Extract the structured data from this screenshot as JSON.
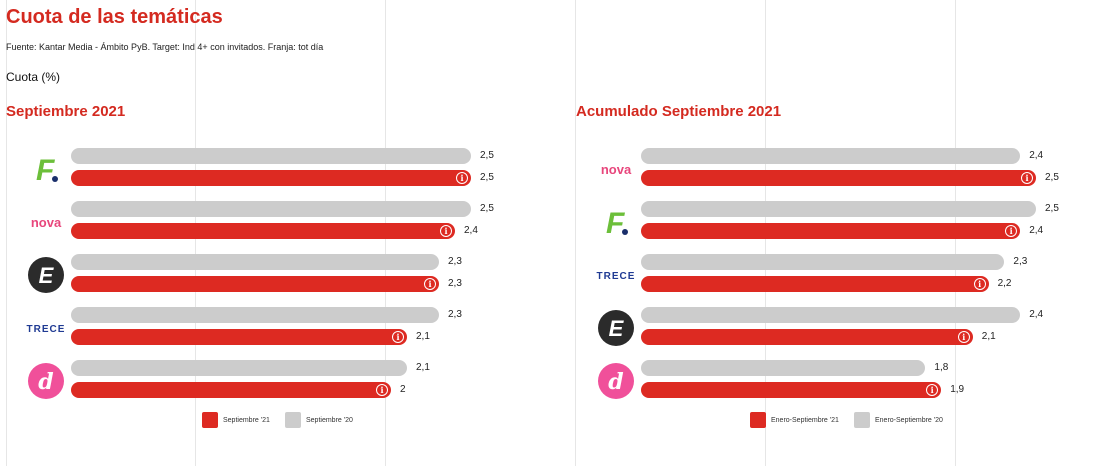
{
  "title": "Cuota de las temáticas",
  "source": "Fuente: Kantar Media - Ámbito PyB. Target: Ind 4+ con invitados. Franja: tot día",
  "unit_label": "Cuota (%)",
  "colors": {
    "current": "#dd2a22",
    "previous": "#cccccc",
    "accent": "#d42a20"
  },
  "chart_data": [
    {
      "type": "bar",
      "orientation": "horizontal",
      "title": "Septiembre 2021",
      "categories": [
        "fdf",
        "nova",
        "energy",
        "trece",
        "divinity"
      ],
      "category_logos": [
        {
          "icon": "fdf-logo-icon",
          "text": "F"
        },
        {
          "icon": "nova-logo-icon",
          "text": "nova"
        },
        {
          "icon": "energy-logo-icon",
          "text": "E"
        },
        {
          "icon": "trece-logo-icon",
          "text": "TRECE"
        },
        {
          "icon": "divinity-logo-icon",
          "text": "d"
        }
      ],
      "series": [
        {
          "name": "Septiembre '20",
          "values": [
            2.5,
            2.5,
            2.3,
            2.3,
            2.1
          ],
          "labels": [
            "2,5",
            "2,5",
            "2,3",
            "2,3",
            "2,1"
          ]
        },
        {
          "name": "Septiembre '21",
          "values": [
            2.5,
            2.4,
            2.3,
            2.1,
            2.0
          ],
          "labels": [
            "2,5",
            "2,4",
            "2,3",
            "2,1",
            "2"
          ]
        }
      ],
      "legend": [
        {
          "name": "Septiembre '21",
          "color": "#dd2a22"
        },
        {
          "name": "Septiembre '20",
          "color": "#cccccc"
        }
      ],
      "legend_position": "bottom",
      "xlim": [
        0,
        2.5
      ]
    },
    {
      "type": "bar",
      "orientation": "horizontal",
      "title": "Acumulado Septiembre 2021",
      "categories": [
        "nova",
        "fdf",
        "trece",
        "energy",
        "divinity"
      ],
      "category_logos": [
        {
          "icon": "nova-logo-icon",
          "text": "nova"
        },
        {
          "icon": "fdf-logo-icon",
          "text": "F"
        },
        {
          "icon": "trece-logo-icon",
          "text": "TRECE"
        },
        {
          "icon": "energy-logo-icon",
          "text": "E"
        },
        {
          "icon": "divinity-logo-icon",
          "text": "d"
        }
      ],
      "series": [
        {
          "name": "Enero-Septiembre '20",
          "values": [
            2.4,
            2.5,
            2.3,
            2.4,
            1.8
          ],
          "labels": [
            "2,4",
            "2,5",
            "2,3",
            "2,4",
            "1,8"
          ]
        },
        {
          "name": "Enero-Septiembre '21",
          "values": [
            2.5,
            2.4,
            2.2,
            2.1,
            1.9
          ],
          "labels": [
            "2,5",
            "2,4",
            "2,2",
            "2,1",
            "1,9"
          ]
        }
      ],
      "legend": [
        {
          "name": "Enero-Septiembre '21",
          "color": "#dd2a22"
        },
        {
          "name": "Enero-Septiembre '20",
          "color": "#cccccc"
        }
      ],
      "legend_position": "bottom",
      "xlim": [
        0,
        2.5
      ]
    }
  ]
}
